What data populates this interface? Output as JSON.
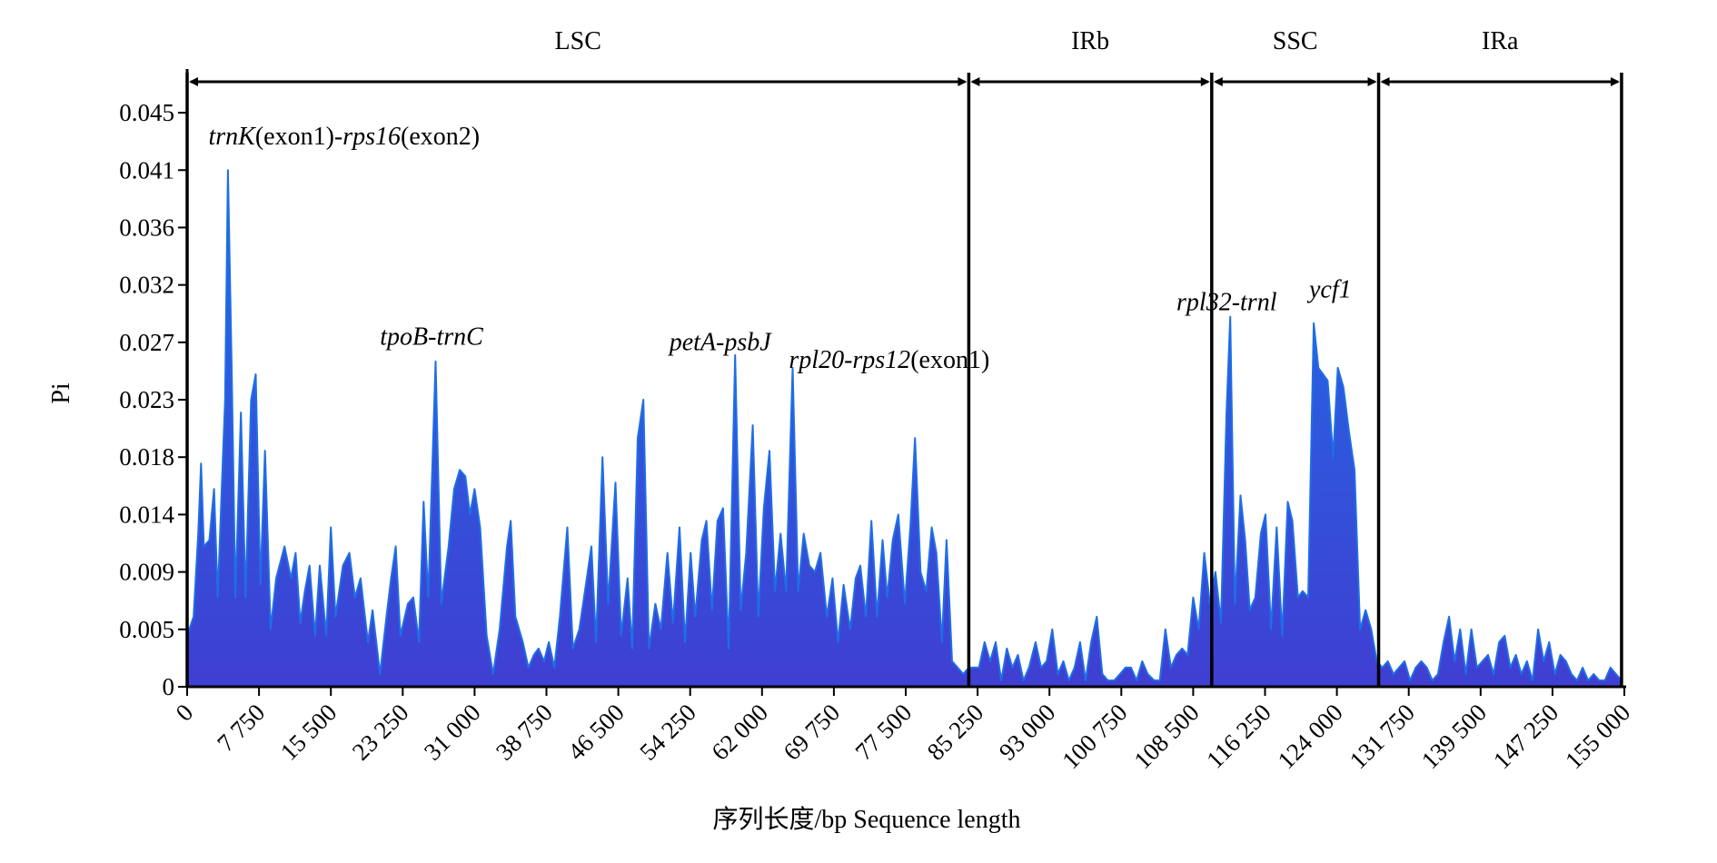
{
  "chart_data": {
    "type": "area",
    "ylabel": "Pi",
    "xlabel": "序列长度/bp  Sequence length",
    "xlim": [
      0,
      155000
    ],
    "ylim": [
      0,
      0.047
    ],
    "x_ticks": [
      0,
      7750,
      15500,
      23250,
      31000,
      38750,
      46500,
      54250,
      62000,
      69750,
      77500,
      85250,
      93000,
      100750,
      108500,
      116250,
      124000,
      131750,
      139500,
      147250,
      155000
    ],
    "x_tick_labels": [
      "0",
      "7 750",
      "15 500",
      "23 250",
      "31 000",
      "38 750",
      "46 500",
      "54 250",
      "62 000",
      "69 750",
      "77 500",
      "85 250",
      "93 000",
      "100 750",
      "108 500",
      "116 250",
      "124 000",
      "131 750",
      "139 500",
      "147 250",
      "155 000"
    ],
    "y_ticks": [
      0,
      0.0045,
      0.009,
      0.0135,
      0.018,
      0.0225,
      0.027,
      0.0315,
      0.036,
      0.0405,
      0.045
    ],
    "y_tick_labels": [
      "0",
      "0.005",
      "0.009",
      "0.014",
      "0.018",
      "0.023",
      "0.027",
      "0.032",
      "0.036",
      "0.041",
      "0.045"
    ],
    "fill_color": "#3f3fd2",
    "line_color": "#1f6ee6",
    "regions": [
      {
        "label": "LSC",
        "start": 0,
        "end": 84300
      },
      {
        "label": "IRb",
        "start": 84300,
        "end": 110500
      },
      {
        "label": "SSC",
        "start": 110500,
        "end": 128500
      },
      {
        "label": "IRa",
        "start": 128500,
        "end": 154700
      }
    ],
    "annotations": [
      {
        "parts": [
          {
            "t": "trnK",
            "i": true
          },
          {
            "t": "(exon1)-",
            "i": false
          },
          {
            "t": "rps16",
            "i": true
          },
          {
            "t": "(exon2)",
            "i": false
          }
        ],
        "x": 2300,
        "y": 0.0425
      },
      {
        "parts": [
          {
            "t": "tpoB-trnC",
            "i": true
          }
        ],
        "x": 20800,
        "y": 0.0268
      },
      {
        "parts": [
          {
            "t": "petA-psbJ",
            "i": true
          }
        ],
        "x": 52000,
        "y": 0.0264
      },
      {
        "parts": [
          {
            "t": "rpl20-rps12",
            "i": true
          },
          {
            "t": "(exon1)",
            "i": false
          }
        ],
        "x": 64900,
        "y": 0.025
      },
      {
        "parts": [
          {
            "t": "rpl32-trnl",
            "i": true
          }
        ],
        "x": 106700,
        "y": 0.0295
      },
      {
        "parts": [
          {
            "t": "ycf1",
            "i": true
          }
        ],
        "x": 121000,
        "y": 0.0305
      }
    ],
    "series": [
      {
        "values": [
          [
            0,
            0.004
          ],
          [
            700,
            0.0055
          ],
          [
            1200,
            0.012
          ],
          [
            1500,
            0.0175
          ],
          [
            1800,
            0.011
          ],
          [
            2400,
            0.0115
          ],
          [
            2900,
            0.0155
          ],
          [
            3300,
            0.007
          ],
          [
            3700,
            0.015
          ],
          [
            4100,
            0.0225
          ],
          [
            4400,
            0.0405
          ],
          [
            4800,
            0.025
          ],
          [
            5200,
            0.007
          ],
          [
            5800,
            0.0215
          ],
          [
            6300,
            0.007
          ],
          [
            6900,
            0.0225
          ],
          [
            7400,
            0.0245
          ],
          [
            7900,
            0.008
          ],
          [
            8400,
            0.0185
          ],
          [
            9000,
            0.0045
          ],
          [
            9600,
            0.0085
          ],
          [
            10500,
            0.011
          ],
          [
            11200,
            0.0085
          ],
          [
            11700,
            0.0105
          ],
          [
            12200,
            0.005
          ],
          [
            12700,
            0.0075
          ],
          [
            13200,
            0.0095
          ],
          [
            13800,
            0.004
          ],
          [
            14300,
            0.0095
          ],
          [
            15000,
            0.004
          ],
          [
            15500,
            0.0125
          ],
          [
            16000,
            0.0055
          ],
          [
            16800,
            0.0095
          ],
          [
            17500,
            0.0105
          ],
          [
            18100,
            0.007
          ],
          [
            18700,
            0.0085
          ],
          [
            19500,
            0.0035
          ],
          [
            20000,
            0.006
          ],
          [
            20800,
            0.001
          ],
          [
            21500,
            0.0055
          ],
          [
            22000,
            0.0085
          ],
          [
            22500,
            0.011
          ],
          [
            23000,
            0.004
          ],
          [
            23800,
            0.0065
          ],
          [
            24400,
            0.007
          ],
          [
            25000,
            0.0035
          ],
          [
            25500,
            0.0145
          ],
          [
            26000,
            0.007
          ],
          [
            26800,
            0.0255
          ],
          [
            27400,
            0.0065
          ],
          [
            28200,
            0.011
          ],
          [
            28800,
            0.0155
          ],
          [
            29400,
            0.017
          ],
          [
            30000,
            0.0165
          ],
          [
            30500,
            0.0135
          ],
          [
            31000,
            0.0155
          ],
          [
            31600,
            0.0125
          ],
          [
            32300,
            0.004
          ],
          [
            33000,
            0.001
          ],
          [
            33700,
            0.0045
          ],
          [
            34500,
            0.011
          ],
          [
            34900,
            0.013
          ],
          [
            35400,
            0.0055
          ],
          [
            36200,
            0.0035
          ],
          [
            36800,
            0.0015
          ],
          [
            37400,
            0.0025
          ],
          [
            37900,
            0.003
          ],
          [
            38500,
            0.002
          ],
          [
            39000,
            0.0035
          ],
          [
            39600,
            0.0015
          ],
          [
            40200,
            0.0055
          ],
          [
            41000,
            0.0125
          ],
          [
            41600,
            0.003
          ],
          [
            42300,
            0.0045
          ],
          [
            43000,
            0.008
          ],
          [
            43600,
            0.011
          ],
          [
            44100,
            0.0035
          ],
          [
            44800,
            0.018
          ],
          [
            45400,
            0.0065
          ],
          [
            46200,
            0.016
          ],
          [
            46800,
            0.004
          ],
          [
            47500,
            0.0085
          ],
          [
            48000,
            0.003
          ],
          [
            48600,
            0.0195
          ],
          [
            49200,
            0.0225
          ],
          [
            49800,
            0.003
          ],
          [
            50500,
            0.0065
          ],
          [
            51100,
            0.0045
          ],
          [
            51800,
            0.0105
          ],
          [
            52400,
            0.005
          ],
          [
            53100,
            0.0125
          ],
          [
            53700,
            0.0035
          ],
          [
            54300,
            0.0105
          ],
          [
            54800,
            0.0055
          ],
          [
            55500,
            0.0115
          ],
          [
            56000,
            0.013
          ],
          [
            56600,
            0.006
          ],
          [
            57200,
            0.013
          ],
          [
            57800,
            0.014
          ],
          [
            58400,
            0.003
          ],
          [
            59100,
            0.026
          ],
          [
            59700,
            0.006
          ],
          [
            60300,
            0.0105
          ],
          [
            61000,
            0.0205
          ],
          [
            61600,
            0.0055
          ],
          [
            62200,
            0.014
          ],
          [
            62800,
            0.0185
          ],
          [
            63400,
            0.0075
          ],
          [
            64000,
            0.012
          ],
          [
            64600,
            0.0075
          ],
          [
            65300,
            0.025
          ],
          [
            65900,
            0.0075
          ],
          [
            66500,
            0.012
          ],
          [
            67100,
            0.0095
          ],
          [
            67700,
            0.009
          ],
          [
            68300,
            0.0105
          ],
          [
            69000,
            0.0055
          ],
          [
            69600,
            0.0085
          ],
          [
            70200,
            0.0035
          ],
          [
            70800,
            0.008
          ],
          [
            71500,
            0.0045
          ],
          [
            72100,
            0.0085
          ],
          [
            72600,
            0.0095
          ],
          [
            73200,
            0.0055
          ],
          [
            73800,
            0.013
          ],
          [
            74400,
            0.0055
          ],
          [
            75000,
            0.0115
          ],
          [
            75500,
            0.007
          ],
          [
            76100,
            0.0115
          ],
          [
            76700,
            0.0135
          ],
          [
            77400,
            0.0065
          ],
          [
            78000,
            0.0125
          ],
          [
            78500,
            0.0195
          ],
          [
            79100,
            0.009
          ],
          [
            79700,
            0.0075
          ],
          [
            80300,
            0.0125
          ],
          [
            80800,
            0.0105
          ],
          [
            81400,
            0.0035
          ],
          [
            81900,
            0.0115
          ],
          [
            82500,
            0.002
          ],
          [
            83100,
            0.0015
          ],
          [
            83700,
            0.001
          ],
          [
            84300,
            0.0015
          ],
          [
            84800,
            0.0015
          ],
          [
            85400,
            0.0015
          ],
          [
            86000,
            0.0035
          ],
          [
            86600,
            0.002
          ],
          [
            87200,
            0.0035
          ],
          [
            87800,
            0.0005
          ],
          [
            88400,
            0.003
          ],
          [
            89000,
            0.0015
          ],
          [
            89600,
            0.0025
          ],
          [
            90200,
            0.0005
          ],
          [
            90800,
            0.0015
          ],
          [
            91500,
            0.0035
          ],
          [
            92100,
            0.0015
          ],
          [
            92700,
            0.002
          ],
          [
            93300,
            0.0045
          ],
          [
            93900,
            0.001
          ],
          [
            94500,
            0.002
          ],
          [
            95100,
            0.0005
          ],
          [
            95700,
            0.0015
          ],
          [
            96300,
            0.0035
          ],
          [
            96900,
            0.0005
          ],
          [
            97500,
            0.0035
          ],
          [
            98100,
            0.0055
          ],
          [
            98700,
            0.001
          ],
          [
            99300,
            0.0005
          ],
          [
            100000,
            0.0005
          ],
          [
            100600,
            0.001
          ],
          [
            101200,
            0.0015
          ],
          [
            101800,
            0.0015
          ],
          [
            102400,
            0.0005
          ],
          [
            103000,
            0.002
          ],
          [
            103600,
            0.001
          ],
          [
            104300,
            0.0005
          ],
          [
            104900,
            0.0005
          ],
          [
            105500,
            0.0045
          ],
          [
            106100,
            0.0015
          ],
          [
            106700,
            0.0025
          ],
          [
            107300,
            0.003
          ],
          [
            107900,
            0.0025
          ],
          [
            108500,
            0.007
          ],
          [
            109100,
            0.0045
          ],
          [
            109700,
            0.0105
          ],
          [
            110300,
            0.0065
          ],
          [
            110900,
            0.009
          ],
          [
            111500,
            0.005
          ],
          [
            112100,
            0.0215
          ],
          [
            112500,
            0.029
          ],
          [
            113000,
            0.0065
          ],
          [
            113600,
            0.015
          ],
          [
            114100,
            0.0115
          ],
          [
            114600,
            0.006
          ],
          [
            115200,
            0.007
          ],
          [
            115800,
            0.012
          ],
          [
            116300,
            0.0135
          ],
          [
            116900,
            0.0045
          ],
          [
            117500,
            0.0125
          ],
          [
            118100,
            0.004
          ],
          [
            118700,
            0.0145
          ],
          [
            119200,
            0.013
          ],
          [
            119800,
            0.007
          ],
          [
            120300,
            0.0075
          ],
          [
            120900,
            0.007
          ],
          [
            121500,
            0.0285
          ],
          [
            122000,
            0.025
          ],
          [
            122500,
            0.0245
          ],
          [
            123000,
            0.024
          ],
          [
            123600,
            0.018
          ],
          [
            124100,
            0.025
          ],
          [
            124700,
            0.0235
          ],
          [
            125300,
            0.02
          ],
          [
            125900,
            0.017
          ],
          [
            126500,
            0.0045
          ],
          [
            127100,
            0.006
          ],
          [
            127700,
            0.0045
          ],
          [
            128300,
            0.002
          ],
          [
            128900,
            0.0015
          ],
          [
            129500,
            0.002
          ],
          [
            130100,
            0.001
          ],
          [
            130700,
            0.0015
          ],
          [
            131300,
            0.002
          ],
          [
            131900,
            0.0005
          ],
          [
            132500,
            0.0015
          ],
          [
            133100,
            0.002
          ],
          [
            133700,
            0.0015
          ],
          [
            134300,
            0.0005
          ],
          [
            134900,
            0.001
          ],
          [
            135500,
            0.0035
          ],
          [
            136100,
            0.0055
          ],
          [
            136700,
            0.002
          ],
          [
            137300,
            0.0045
          ],
          [
            137900,
            0.001
          ],
          [
            138500,
            0.0045
          ],
          [
            139100,
            0.0015
          ],
          [
            139700,
            0.002
          ],
          [
            140300,
            0.0025
          ],
          [
            140900,
            0.001
          ],
          [
            141500,
            0.0035
          ],
          [
            142100,
            0.004
          ],
          [
            142700,
            0.0015
          ],
          [
            143300,
            0.0025
          ],
          [
            143900,
            0.001
          ],
          [
            144500,
            0.002
          ],
          [
            145100,
            0.0005
          ],
          [
            145700,
            0.0045
          ],
          [
            146300,
            0.002
          ],
          [
            146900,
            0.0035
          ],
          [
            147500,
            0.001
          ],
          [
            148100,
            0.0025
          ],
          [
            148700,
            0.002
          ],
          [
            149300,
            0.001
          ],
          [
            149900,
            0.0005
          ],
          [
            150500,
            0.0015
          ],
          [
            151100,
            0.0005
          ],
          [
            151700,
            0.001
          ],
          [
            152300,
            0.0005
          ],
          [
            152900,
            0.0005
          ],
          [
            153500,
            0.0015
          ],
          [
            154100,
            0.001
          ],
          [
            154700,
            0.0005
          ]
        ]
      }
    ]
  }
}
